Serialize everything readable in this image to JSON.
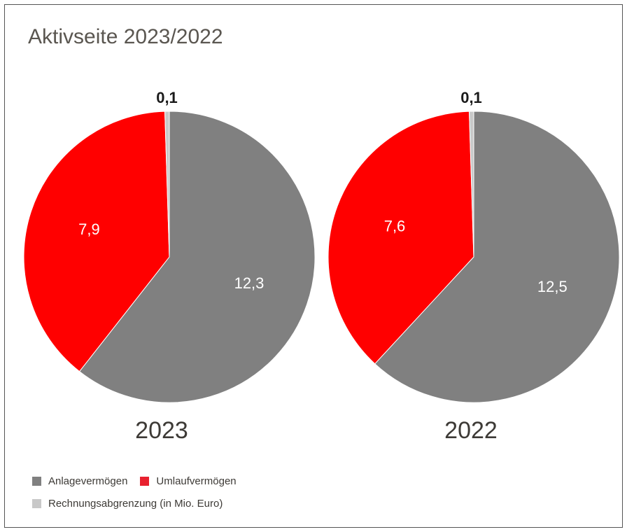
{
  "page": {
    "title": "Aktivseite 2023/2022"
  },
  "colors": {
    "anlage": "#808080",
    "umlauf": "#ff0000",
    "rechnung": "#c8c8c8",
    "legend_umlauf": "#e8212f"
  },
  "chart_data": [
    {
      "type": "pie",
      "title": "2023",
      "slices": [
        {
          "label": "Anlagevermögen",
          "value": 12.3,
          "value_label": "12,3"
        },
        {
          "label": "Umlaufvermögen",
          "value": 7.9,
          "value_label": "7,9"
        },
        {
          "label": "Rechnungsabgrenzung",
          "value": 0.1,
          "value_label": "0,1"
        }
      ]
    },
    {
      "type": "pie",
      "title": "2022",
      "slices": [
        {
          "label": "Anlagevermögen",
          "value": 12.5,
          "value_label": "12,5"
        },
        {
          "label": "Umlaufvermögen",
          "value": 7.6,
          "value_label": "7,6"
        },
        {
          "label": "Rechnungsabgrenzung",
          "value": 0.1,
          "value_label": "0,1"
        }
      ]
    }
  ],
  "legend": {
    "items": [
      {
        "label": "Anlagevermögen"
      },
      {
        "label": "Umlaufvermögen"
      },
      {
        "label": "Rechnungsabgrenzung (in Mio. Euro)"
      }
    ]
  }
}
